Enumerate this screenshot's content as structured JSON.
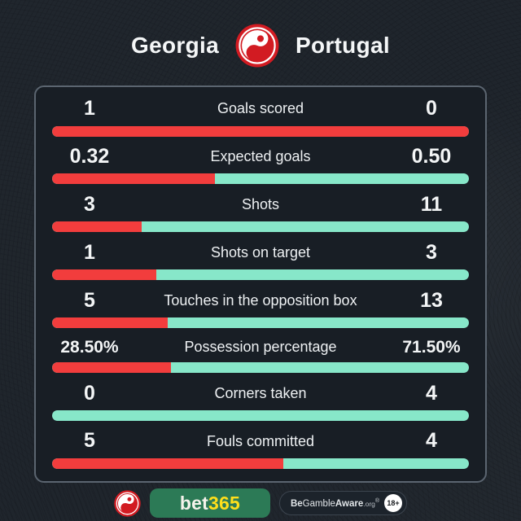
{
  "header": {
    "home_team": "Georgia",
    "away_team": "Portugal"
  },
  "chart_data": {
    "type": "bar",
    "orientation": "horizontal-paired-comparison",
    "title": "Georgia vs Portugal",
    "categories": [
      "Goals scored",
      "Expected goals",
      "Shots",
      "Shots on target",
      "Touches in the opposition box",
      "Possession percentage",
      "Corners taken",
      "Fouls committed"
    ],
    "series": [
      {
        "name": "Georgia",
        "values": [
          1,
          0.32,
          3,
          1,
          5,
          28.5,
          0,
          5
        ],
        "display": [
          "1",
          "0.32",
          "3",
          "1",
          "5",
          "28.50%",
          "0",
          "5"
        ]
      },
      {
        "name": "Portugal",
        "values": [
          0,
          0.5,
          11,
          3,
          13,
          71.5,
          4,
          4
        ],
        "display": [
          "0",
          "0.50",
          "11",
          "3",
          "13",
          "71.50%",
          "4",
          "4"
        ]
      }
    ],
    "legend": "none",
    "grid": false,
    "bar_semantics": "each bar shows home share (red, left) vs away share (teal, right) of the row total"
  },
  "footer": {
    "bet365": {
      "bet": "bet",
      "num": "365"
    },
    "gamble_aware": {
      "be": "Be",
      "gamble": "Gamble",
      "aware": "Aware",
      "org": ".org",
      "reg": "®"
    },
    "age_badge": "18+"
  },
  "colors": {
    "home_bar": "#f23d3d",
    "away_bar": "#87e7c9",
    "logo_red": "#d21b22",
    "brand_green": "#2c7a56",
    "brand_yellow": "#ffdf1b",
    "panel_bg": "#181e25",
    "panel_border": "#5b6570",
    "page_bg": "#20262d",
    "text": "#f3f5f6"
  }
}
